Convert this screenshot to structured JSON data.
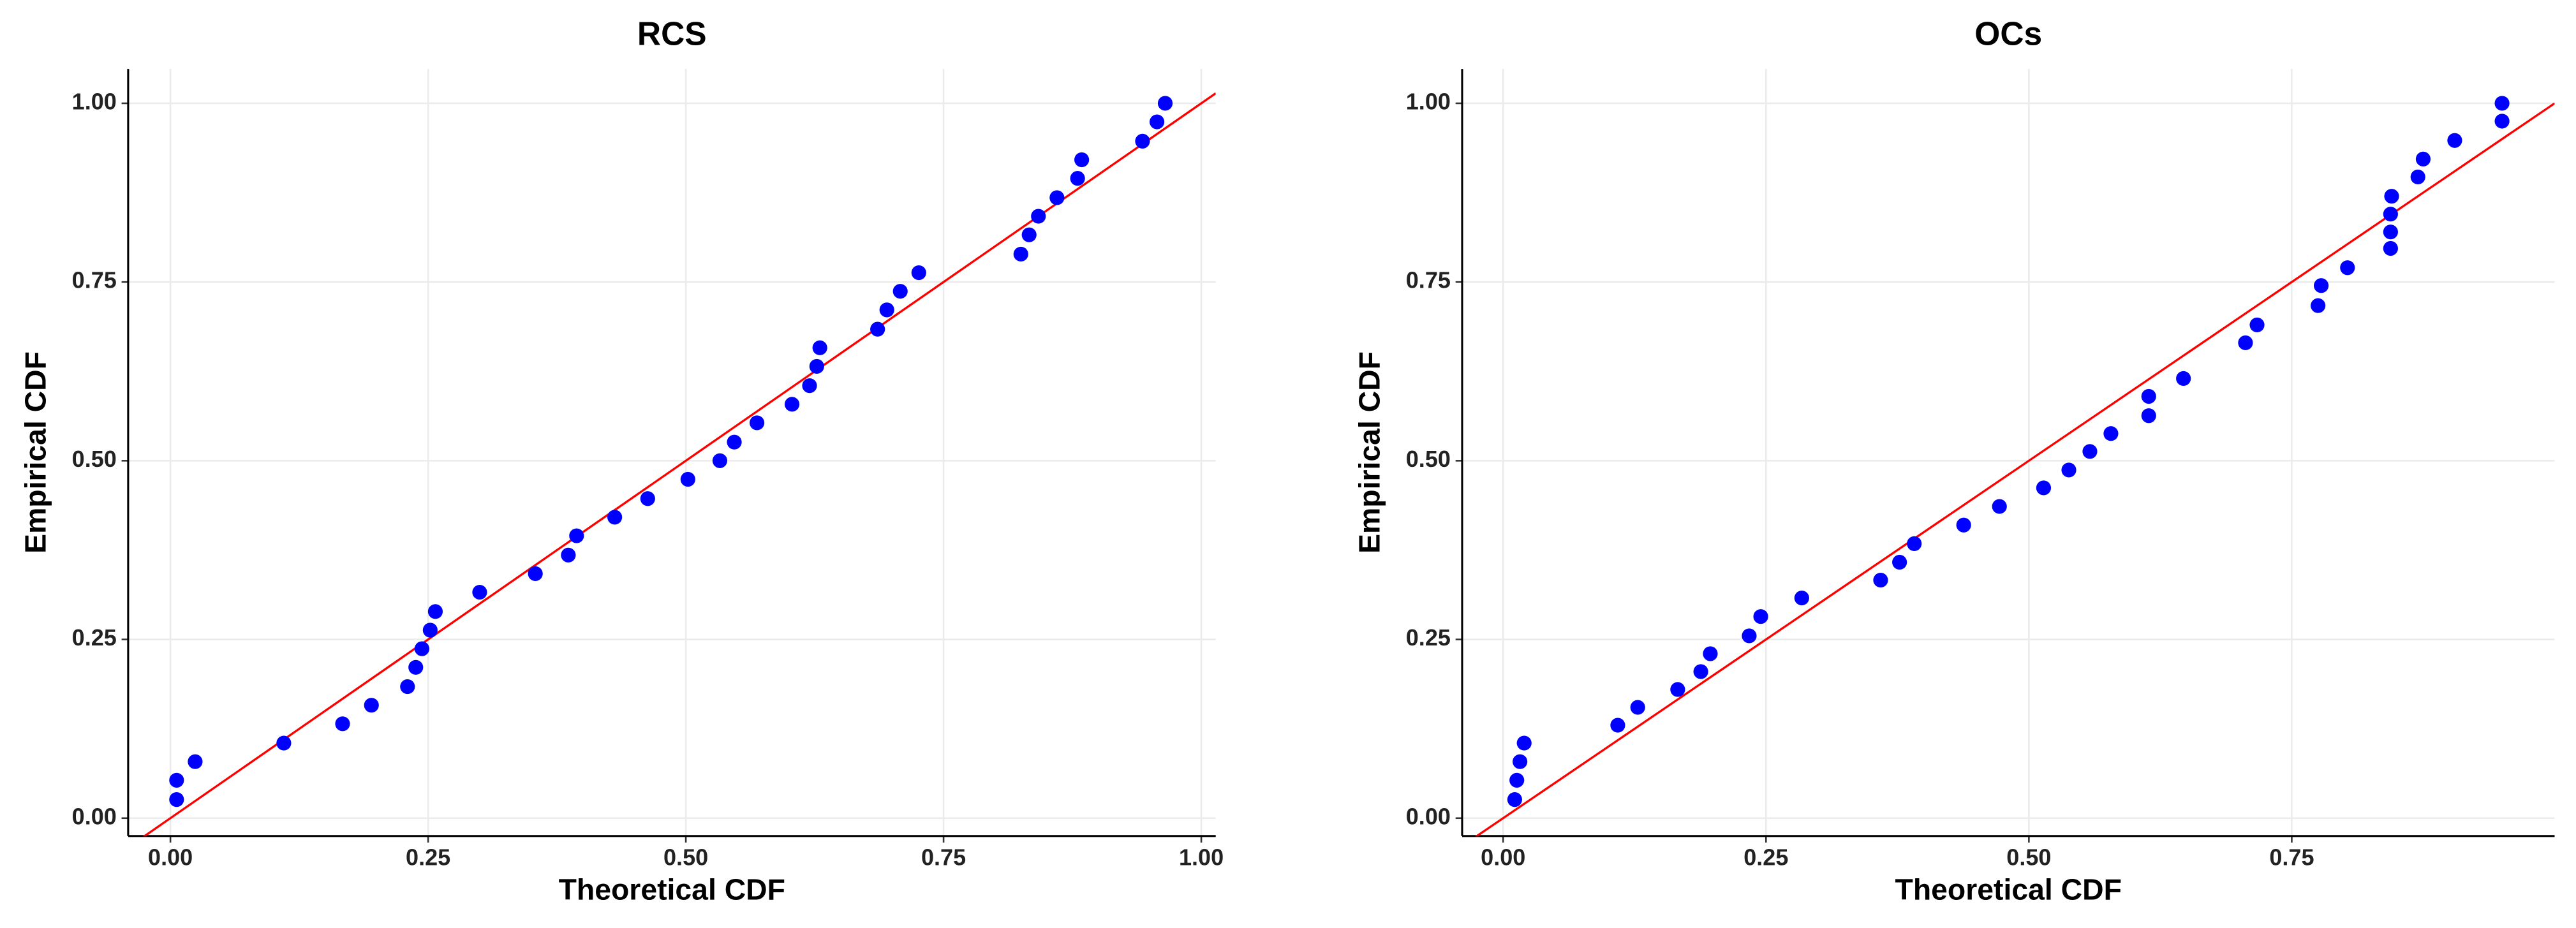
{
  "chart_data": [
    {
      "type": "scatter",
      "title": "RCS",
      "x_label": "Theoretical CDF",
      "y_label": "Empirical CDF",
      "x": [
        0.006,
        0.006,
        0.024,
        0.11,
        0.167,
        0.195,
        0.23,
        0.238,
        0.244,
        0.252,
        0.257,
        0.3,
        0.354,
        0.386,
        0.394,
        0.431,
        0.463,
        0.502,
        0.533,
        0.547,
        0.569,
        0.603,
        0.62,
        0.627,
        0.63,
        0.686,
        0.695,
        0.708,
        0.726,
        0.825,
        0.833,
        0.842,
        0.86,
        0.88,
        0.884,
        0.943,
        0.957,
        0.965
      ],
      "values": [
        0.026,
        0.053,
        0.079,
        0.105,
        0.132,
        0.158,
        0.184,
        0.211,
        0.237,
        0.263,
        0.289,
        0.316,
        0.342,
        0.368,
        0.395,
        0.421,
        0.447,
        0.474,
        0.5,
        0.526,
        0.553,
        0.579,
        0.605,
        0.632,
        0.658,
        0.684,
        0.711,
        0.737,
        0.763,
        0.789,
        0.816,
        0.842,
        0.868,
        0.895,
        0.921,
        0.947,
        0.974,
        1.0
      ],
      "color": "#0000ff",
      "identity_line_color": "#ff0000",
      "grid": true,
      "xlim": [
        -0.041,
        1.014
      ],
      "ylim": [
        -0.025,
        1.048
      ],
      "xticks": [
        {
          "value": 0,
          "label": "0.00"
        },
        {
          "value": 0.25,
          "label": "0.25"
        },
        {
          "value": 0.5,
          "label": "0.50"
        },
        {
          "value": 0.75,
          "label": "0.75"
        },
        {
          "value": 1,
          "label": "1.00"
        }
      ],
      "yticks": [
        {
          "value": 0,
          "label": "0.00"
        },
        {
          "value": 0.25,
          "label": "0.25"
        },
        {
          "value": 0.5,
          "label": "0.50"
        },
        {
          "value": 0.75,
          "label": "0.75"
        },
        {
          "value": 1,
          "label": "1.00"
        }
      ]
    },
    {
      "type": "scatter",
      "title": "OCs",
      "x_label": "Theoretical CDF",
      "y_label": "Empirical CDF",
      "x": [
        0.011,
        0.013,
        0.016,
        0.02,
        0.109,
        0.128,
        0.166,
        0.188,
        0.197,
        0.234,
        0.245,
        0.284,
        0.359,
        0.377,
        0.391,
        0.438,
        0.472,
        0.514,
        0.538,
        0.558,
        0.578,
        0.614,
        0.614,
        0.647,
        0.706,
        0.717,
        0.775,
        0.778,
        0.803,
        0.844,
        0.844,
        0.844,
        0.845,
        0.87,
        0.875,
        0.905,
        0.95,
        0.95
      ],
      "values": [
        0.026,
        0.053,
        0.079,
        0.105,
        0.13,
        0.155,
        0.18,
        0.205,
        0.23,
        0.255,
        0.282,
        0.308,
        0.333,
        0.358,
        0.384,
        0.41,
        0.436,
        0.462,
        0.487,
        0.513,
        0.538,
        0.563,
        0.59,
        0.615,
        0.665,
        0.69,
        0.717,
        0.745,
        0.77,
        0.797,
        0.82,
        0.845,
        0.87,
        0.897,
        0.922,
        0.948,
        0.975,
        1.0
      ],
      "color": "#0000ff",
      "identity_line_color": "#ff0000",
      "grid": true,
      "xlim": [
        -0.039,
        1.0
      ],
      "ylim": [
        -0.025,
        1.048
      ],
      "xticks": [
        {
          "value": 0,
          "label": "0.00"
        },
        {
          "value": 0.25,
          "label": "0.25"
        },
        {
          "value": 0.5,
          "label": "0.50"
        },
        {
          "value": 0.75,
          "label": "0.75"
        }
      ],
      "yticks": [
        {
          "value": 0,
          "label": "0.00"
        },
        {
          "value": 0.25,
          "label": "0.25"
        },
        {
          "value": 0.5,
          "label": "0.50"
        },
        {
          "value": 0.75,
          "label": "0.75"
        },
        {
          "value": 1,
          "label": "1.00"
        }
      ]
    }
  ]
}
